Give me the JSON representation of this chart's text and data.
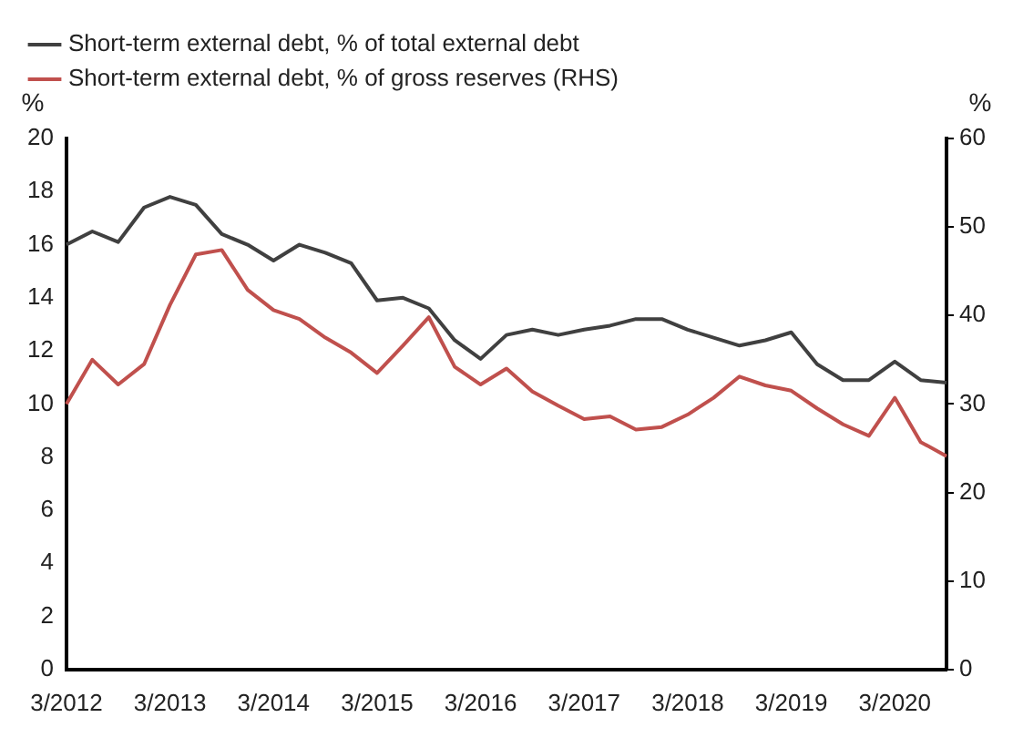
{
  "chart_data": {
    "type": "line",
    "ylabel": "%",
    "y2label": "%",
    "categories": [
      "3/2012",
      null,
      null,
      null,
      "3/2013",
      null,
      null,
      null,
      "3/2014",
      null,
      null,
      null,
      "3/2015",
      null,
      null,
      null,
      "3/2016",
      null,
      null,
      null,
      "3/2017",
      null,
      null,
      null,
      "3/2018",
      null,
      null,
      null,
      "3/2019",
      null,
      null,
      null,
      "3/2020",
      null,
      null
    ],
    "series": [
      {
        "name": "Short-term external debt, % of total external debt",
        "color": "#404040",
        "values": [
          16.0,
          16.5,
          16.1,
          17.4,
          17.8,
          17.5,
          16.4,
          16.0,
          15.4,
          16.0,
          15.7,
          15.3,
          13.9,
          14.0,
          13.6,
          12.4,
          11.7,
          12.6,
          12.8,
          12.6,
          12.8,
          12.95,
          13.2,
          13.2,
          12.8,
          12.5,
          12.2,
          12.4,
          12.7,
          11.5,
          10.9,
          10.9,
          11.6,
          10.9,
          10.8
        ]
      },
      {
        "name": "Short-term external debt, % of gross reserves (RHS)",
        "color": "#c0504d",
        "axis": "y2",
        "values": [
          30.0,
          35.0,
          32.2,
          34.5,
          41.2,
          46.9,
          47.4,
          42.9,
          40.6,
          39.6,
          37.5,
          35.8,
          33.5,
          36.6,
          39.8,
          34.2,
          32.2,
          34.0,
          31.4,
          29.8,
          28.3,
          28.6,
          27.1,
          27.4,
          28.8,
          30.7,
          33.1,
          32.1,
          31.5,
          29.5,
          27.7,
          26.4,
          30.7,
          25.7,
          24.1
        ]
      }
    ],
    "ylim": [
      0,
      20
    ],
    "yticks": [
      0,
      2,
      4,
      6,
      8,
      10,
      12,
      14,
      16,
      18,
      20
    ],
    "y2lim": [
      0,
      60
    ],
    "y2ticks": [
      0,
      10,
      20,
      30,
      40,
      50,
      60
    ],
    "legend": "top left"
  }
}
